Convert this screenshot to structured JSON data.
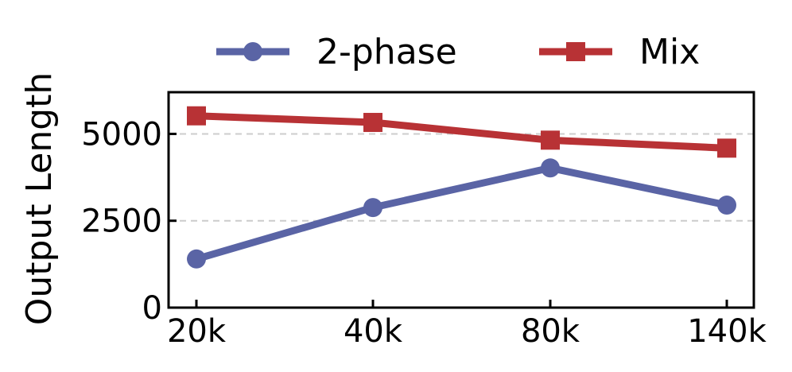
{
  "chart_data": {
    "type": "line",
    "categories": [
      "20k",
      "40k",
      "80k",
      "140k"
    ],
    "series": [
      {
        "name": "2-phase",
        "values": [
          1400,
          2880,
          4020,
          2950
        ],
        "color": "#5a64a5",
        "marker": "circle"
      },
      {
        "name": "Mix",
        "values": [
          5520,
          5330,
          4820,
          4590
        ],
        "color": "#b83235",
        "marker": "square"
      }
    ],
    "xlabel": "",
    "ylabel": "Output Length",
    "ylim": [
      0,
      6200
    ],
    "yticks": [
      0,
      2500,
      5000
    ],
    "ytick_labels": [
      "0",
      "2500",
      "5000"
    ],
    "grid": "horizontal dashed",
    "legend": "top, outside plot"
  }
}
